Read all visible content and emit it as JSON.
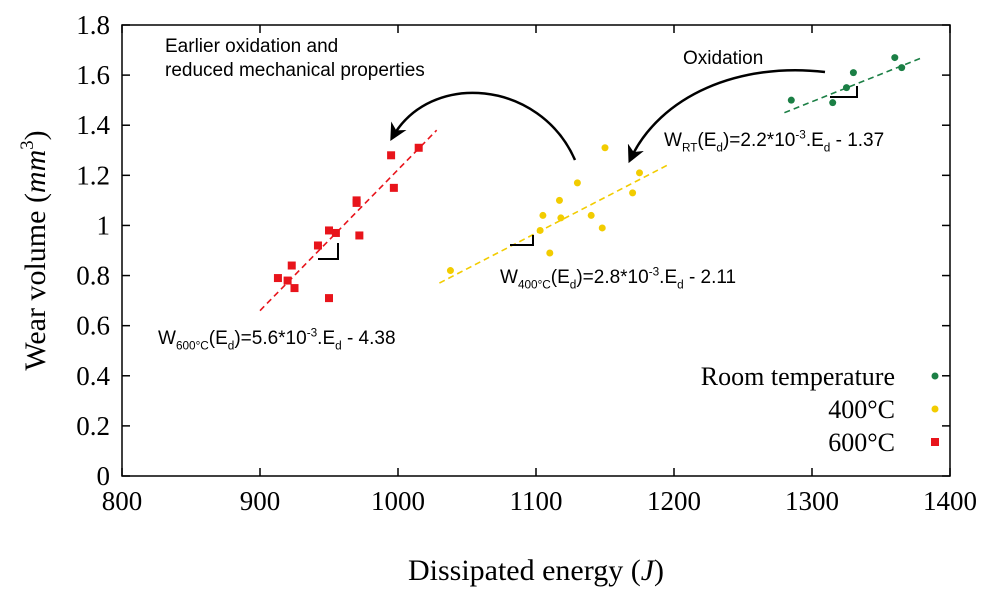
{
  "chart_data": {
    "type": "scatter",
    "x_label_parts": [
      {
        "text": "Dissipated energy ("
      },
      {
        "italic": "J"
      },
      {
        "text": ")"
      }
    ],
    "y_label_parts": [
      {
        "text": "Wear volume ("
      },
      {
        "italic": "mm"
      },
      {
        "sup": "3"
      },
      {
        "text": ")"
      }
    ],
    "xlim": [
      800,
      1400
    ],
    "ylim": [
      0,
      1.8
    ],
    "xticks": [
      800,
      900,
      1000,
      1100,
      1200,
      1300,
      1400
    ],
    "yticks": [
      0,
      0.2,
      0.4,
      0.6,
      0.8,
      1,
      1.2,
      1.4,
      1.6,
      1.8
    ],
    "legend": "lower right",
    "series": [
      {
        "name": "Room temperature",
        "color": "#1b7f45",
        "marker": "circle",
        "x": [
          1285,
          1315,
          1325,
          1330,
          1360,
          1365
        ],
        "values": [
          1.5,
          1.49,
          1.55,
          1.61,
          1.67,
          1.63
        ],
        "fit_x": [
          1280,
          1380
        ],
        "fit_y": [
          1.45,
          1.67
        ]
      },
      {
        "name": "400°C",
        "color": "#f2cc00",
        "marker": "circle",
        "x": [
          1038,
          1103,
          1105,
          1110,
          1117,
          1118,
          1130,
          1140,
          1148,
          1150,
          1170,
          1175
        ],
        "values": [
          0.82,
          0.98,
          1.04,
          0.89,
          1.1,
          1.03,
          1.17,
          1.04,
          0.99,
          1.31,
          1.13,
          1.21
        ],
        "fit_x": [
          1030,
          1195
        ],
        "fit_y": [
          0.77,
          1.24
        ]
      },
      {
        "name": "600°C",
        "color": "#e8141b",
        "marker": "square",
        "x": [
          913,
          920,
          923,
          925,
          942,
          950,
          950,
          955,
          970,
          970,
          972,
          995,
          997,
          1015
        ],
        "values": [
          0.79,
          0.78,
          0.84,
          0.75,
          0.92,
          0.98,
          0.71,
          0.97,
          1.09,
          1.1,
          0.96,
          1.28,
          1.15,
          1.31
        ],
        "fit_x": [
          900,
          1028
        ],
        "fit_y": [
          0.66,
          1.38
        ]
      }
    ],
    "annotations": [
      {
        "lines": [
          "Earlier oxidation and",
          "reduced mechanical properties"
        ]
      },
      {
        "lines": [
          "Oxidation"
        ]
      },
      {
        "parts": [
          {
            "text": "W"
          },
          {
            "sub": "RT"
          },
          {
            "text": "(E"
          },
          {
            "sub": "d"
          },
          {
            "text": ")=2.2*10"
          },
          {
            "sup": "-3"
          },
          {
            "text": ".E"
          },
          {
            "sub": "d"
          },
          {
            "text": " - 1.37"
          }
        ]
      },
      {
        "parts": [
          {
            "text": "W"
          },
          {
            "sub": "400°C"
          },
          {
            "text": "(E"
          },
          {
            "sub": "d"
          },
          {
            "text": ")=2.8*10"
          },
          {
            "sup": "-3"
          },
          {
            "text": ".E"
          },
          {
            "sub": "d"
          },
          {
            "text": " - 2.11"
          }
        ]
      },
      {
        "parts": [
          {
            "text": "W"
          },
          {
            "sub": "600°C"
          },
          {
            "text": "(E"
          },
          {
            "sub": "d"
          },
          {
            "text": ")=5.6*10"
          },
          {
            "sup": "-3"
          },
          {
            "text": ".E"
          },
          {
            "sub": "d"
          },
          {
            "text": " - 4.38"
          }
        ]
      }
    ]
  }
}
